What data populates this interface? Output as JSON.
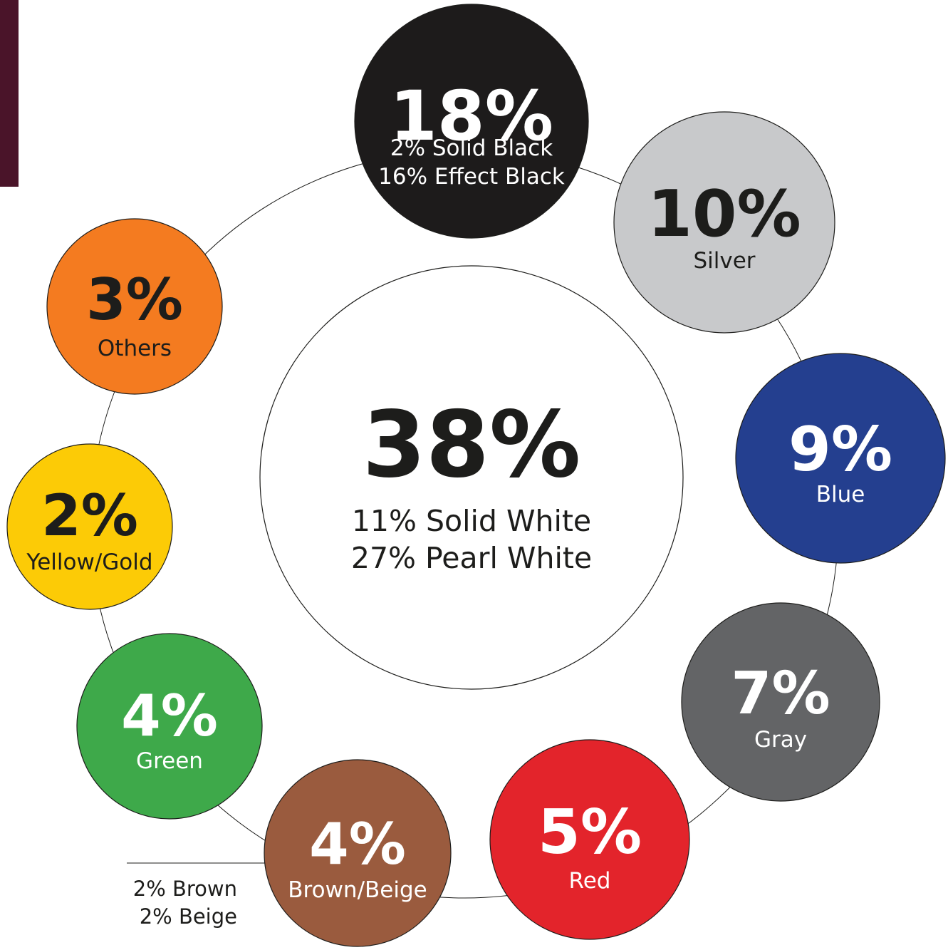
{
  "chart_data": {
    "type": "bubble",
    "center": {
      "value_label": "38%",
      "lines": [
        "11% Solid White",
        "27% Pearl White"
      ],
      "color": "#ffffff",
      "text_color": "#1d1d1b"
    },
    "items": [
      {
        "id": "black",
        "value_label": "18%",
        "lines": [
          "2% Solid Black",
          "16% Effect Black"
        ],
        "color": "#1d1b1b",
        "text_color": "#ffffff"
      },
      {
        "id": "silver",
        "value_label": "10%",
        "lines": [
          "Silver"
        ],
        "color": "#c8c9cb",
        "text_color": "#1d1d1b"
      },
      {
        "id": "blue",
        "value_label": "9%",
        "lines": [
          "Blue"
        ],
        "color": "#243f8f",
        "text_color": "#ffffff"
      },
      {
        "id": "gray",
        "value_label": "7%",
        "lines": [
          "Gray"
        ],
        "color": "#636466",
        "text_color": "#ffffff"
      },
      {
        "id": "red",
        "value_label": "5%",
        "lines": [
          "Red"
        ],
        "color": "#e3242b",
        "text_color": "#ffffff"
      },
      {
        "id": "brown-beige",
        "value_label": "4%",
        "lines": [
          "Brown/Beige"
        ],
        "color": "#9a5b3e",
        "text_color": "#ffffff"
      },
      {
        "id": "green",
        "value_label": "4%",
        "lines": [
          "Green"
        ],
        "color": "#3ea94a",
        "text_color": "#ffffff"
      },
      {
        "id": "yellow-gold",
        "value_label": "2%",
        "lines": [
          "Yellow/Gold"
        ],
        "color": "#fccb06",
        "text_color": "#1d1d1b"
      },
      {
        "id": "others",
        "value_label": "3%",
        "lines": [
          "Others"
        ],
        "color": "#f47b20",
        "text_color": "#1d1d1b"
      }
    ],
    "annotation": {
      "lines": [
        "2% Brown",
        "2% Beige"
      ],
      "refers_to": "brown-beige"
    },
    "side_bar_color": "#4a1429"
  }
}
